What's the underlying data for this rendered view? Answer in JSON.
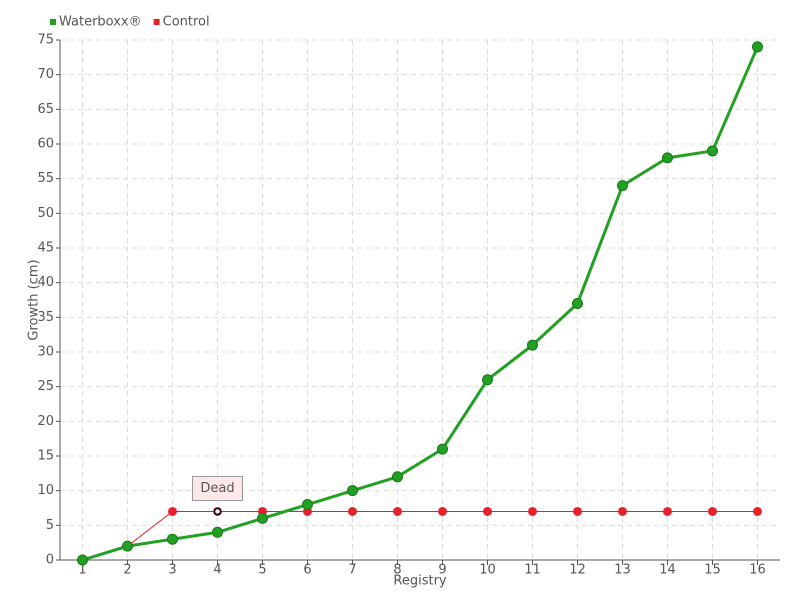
{
  "chart_data": {
    "type": "line",
    "x_label": "Registry",
    "y_label": "Growth (cm)",
    "categories": [
      "1",
      "2",
      "3",
      "4",
      "5",
      "6",
      "7",
      "8",
      "9",
      "10",
      "11",
      "12",
      "13",
      "14",
      "15",
      "16"
    ],
    "series": [
      {
        "name": "Waterboxx®",
        "color": "#22a022",
        "values": [
          0,
          2,
          3,
          4,
          6,
          8,
          10,
          12,
          16,
          26,
          31,
          37,
          54,
          58,
          59,
          74
        ]
      },
      {
        "name": "Control",
        "color": "#e8202a",
        "values": [
          0,
          2,
          7,
          7,
          7,
          7,
          7,
          7,
          7,
          7,
          7,
          7,
          7,
          7,
          7,
          7
        ]
      }
    ],
    "annotations": [
      {
        "text": "Dead",
        "series": 1,
        "index": 3
      }
    ],
    "ylim": [
      0,
      75
    ],
    "yticks": [
      0,
      5,
      10,
      15,
      20,
      25,
      30,
      35,
      40,
      45,
      50,
      55,
      60,
      65,
      70,
      75
    ],
    "grid": true,
    "legend": "top-left"
  }
}
